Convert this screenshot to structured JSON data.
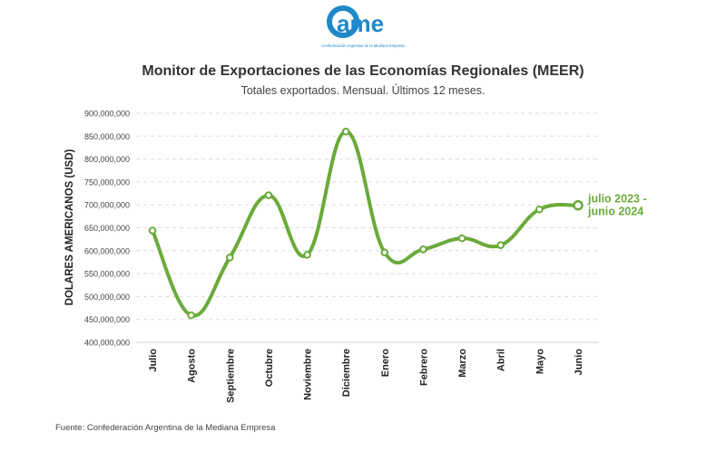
{
  "logo": {
    "wordmark": "ame",
    "tagline": "Confederación Argentina de la Mediana Empresa",
    "colors": {
      "blue": "#1E88C8",
      "orange": "#F26A21"
    }
  },
  "title": "Monitor de Exportaciones de las Economías Regionales (MEER)",
  "subtitle": "Totales exportados. Mensual. Últimos 12 meses.",
  "source": "Fuente: Confederación Argentina de la Mediana Empresa",
  "chart_data": {
    "type": "line",
    "ylabel": "DOLARES AMERICANOS (USD)",
    "ylim": [
      400000000,
      900000000
    ],
    "yticks": [
      "400,000,000",
      "450,000,000",
      "500,000,000",
      "550,000,000",
      "600,000,000",
      "650,000,000",
      "700,000,000",
      "750,000,000",
      "800,000,000",
      "850,000,000",
      "900,000,000"
    ],
    "grid": "horizontal dashed",
    "categories": [
      "Julio",
      "Agosto",
      "Septiembre",
      "Octubre",
      "Noviembre",
      "Diciembre",
      "Enero",
      "Febrero",
      "Marzo",
      "Abril",
      "Mayo",
      "Junio"
    ],
    "series": [
      {
        "name": "julio 2023 - junio 2024",
        "color": "#6AAA3A",
        "values": [
          644000000,
          459000000,
          585000000,
          721000000,
          591000000,
          860000000,
          596000000,
          603000000,
          627000000,
          612000000,
          690000000,
          699000000
        ]
      }
    ],
    "series_label_lines": [
      "julio 2023 -",
      "junio 2024"
    ]
  }
}
